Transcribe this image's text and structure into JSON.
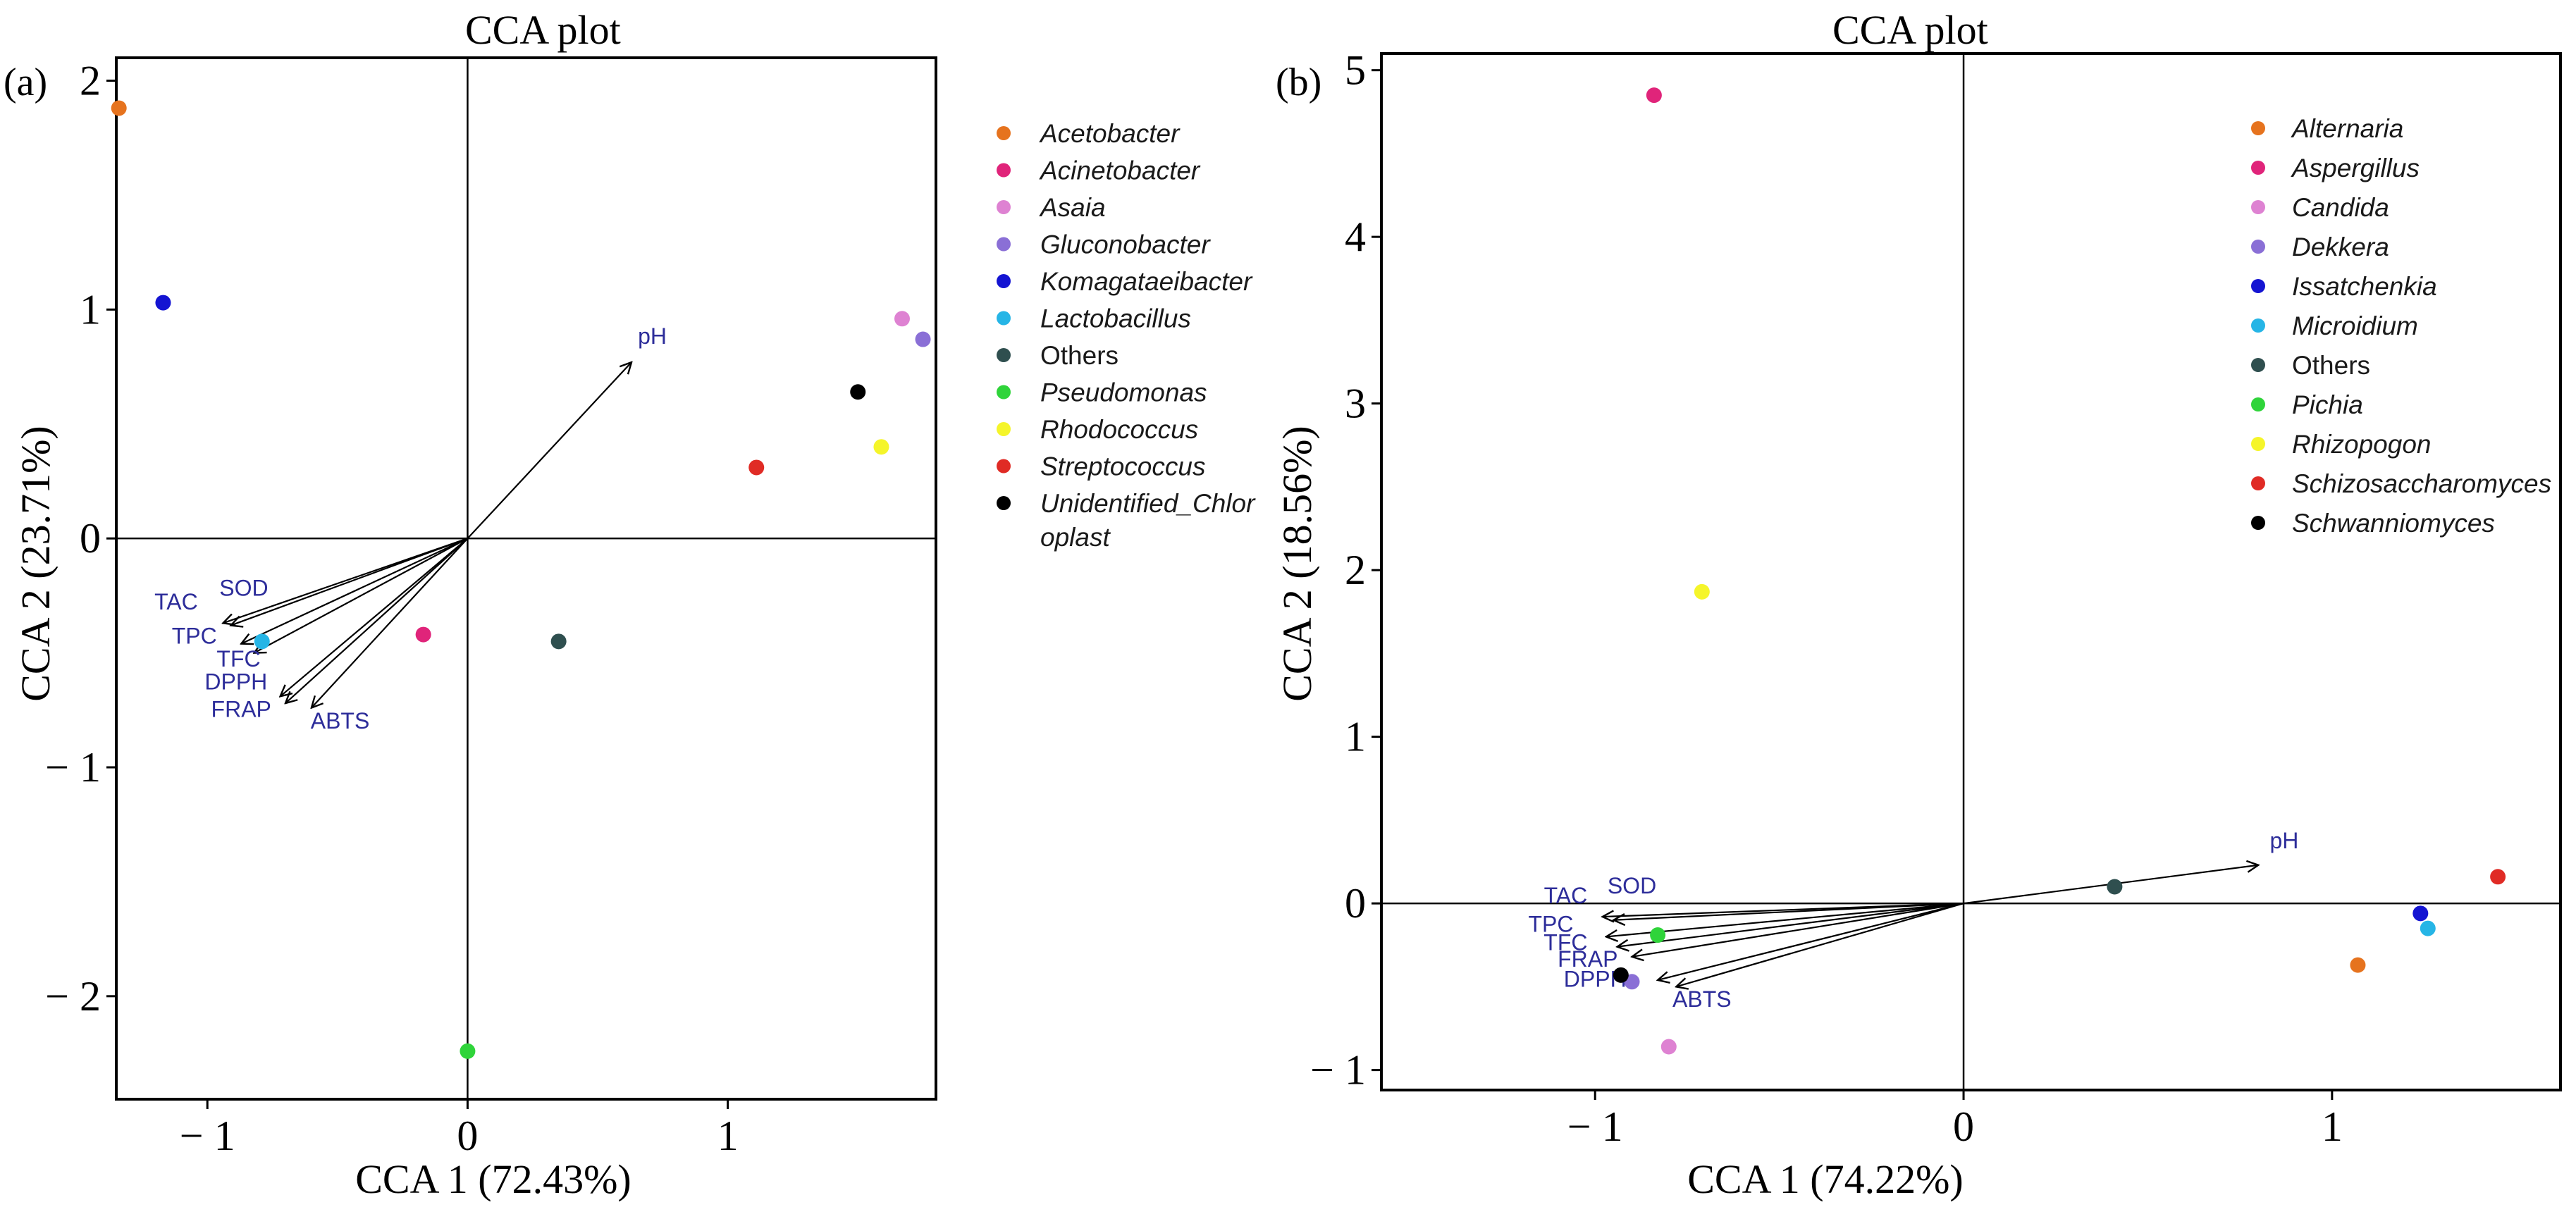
{
  "chart_data": [
    {
      "type": "scatter",
      "panel_label": "(a)",
      "title": "CCA  plot",
      "xlabel": "CCA  1 (72.43%)",
      "ylabel": "CCA  2 (23.71%)",
      "xlim": [
        -1.35,
        1.8
      ],
      "ylim": [
        -2.45,
        2.1
      ],
      "xticks": [
        {
          "v": -1,
          "label": "− 1"
        },
        {
          "v": 0,
          "label": "0"
        },
        {
          "v": 1,
          "label": "1"
        }
      ],
      "yticks": [
        {
          "v": -2,
          "label": "− 2"
        },
        {
          "v": -1,
          "label": "− 1"
        },
        {
          "v": 0,
          "label": "0"
        },
        {
          "v": 1,
          "label": "1"
        },
        {
          "v": 2,
          "label": "2"
        }
      ],
      "points": [
        {
          "name": "Acetobacter",
          "x": -1.34,
          "y": 1.88,
          "color": "#e6731e"
        },
        {
          "name": "Acinetobacter",
          "x": -0.17,
          "y": -0.42,
          "color": "#e0247a"
        },
        {
          "name": "Asaia",
          "x": 1.67,
          "y": 0.96,
          "color": "#de82d2"
        },
        {
          "name": "Gluconobacter",
          "x": 1.75,
          "y": 0.87,
          "color": "#8a6fd6"
        },
        {
          "name": "Komagataeibacter",
          "x": -1.17,
          "y": 1.03,
          "color": "#1414d2"
        },
        {
          "name": "Lactobacillus",
          "x": -0.79,
          "y": -0.45,
          "color": "#26b5e6"
        },
        {
          "name": "Others",
          "x": 0.35,
          "y": -0.45,
          "color": "#2f4f4f"
        },
        {
          "name": "Pseudomonas",
          "x": 0.0,
          "y": -2.24,
          "color": "#2fd43a"
        },
        {
          "name": "Rhodococcus",
          "x": 1.59,
          "y": 0.4,
          "color": "#f5f52a"
        },
        {
          "name": "Streptococcus",
          "x": 1.11,
          "y": 0.31,
          "color": "#e02b25"
        },
        {
          "name": "Unidentified_Chloroplast",
          "x": 1.5,
          "y": 0.64,
          "color": "#000000"
        }
      ],
      "vectors": [
        {
          "name": "pH",
          "x": 0.63,
          "y": 0.77,
          "lx": 0.71,
          "ly": 0.85
        },
        {
          "name": "TAC",
          "x": -0.94,
          "y": -0.37,
          "lx": -1.12,
          "ly": -0.31
        },
        {
          "name": "SOD",
          "x": -0.91,
          "y": -0.38,
          "lx": -0.86,
          "ly": -0.25
        },
        {
          "name": "TPC",
          "x": -0.87,
          "y": -0.46,
          "lx": -1.05,
          "ly": -0.46
        },
        {
          "name": "TFC",
          "x": -0.82,
          "y": -0.5,
          "lx": -0.88,
          "ly": -0.56
        },
        {
          "name": "DPPH",
          "x": -0.72,
          "y": -0.69,
          "lx": -0.89,
          "ly": -0.66
        },
        {
          "name": "FRAP",
          "x": -0.7,
          "y": -0.72,
          "lx": -0.87,
          "ly": -0.78
        },
        {
          "name": "ABTS",
          "x": -0.6,
          "y": -0.74,
          "lx": -0.49,
          "ly": -0.83
        }
      ],
      "legend": [
        {
          "label": "Acetobacter",
          "color": "#e6731e",
          "italic": true
        },
        {
          "label": "Acinetobacter",
          "color": "#e0247a",
          "italic": true
        },
        {
          "label": "Asaia",
          "color": "#de82d2",
          "italic": true
        },
        {
          "label": "Gluconobacter",
          "color": "#8a6fd6",
          "italic": true
        },
        {
          "label": "Komagataeibacter",
          "color": "#1414d2",
          "italic": true
        },
        {
          "label": "Lactobacillus",
          "color": "#26b5e6",
          "italic": true
        },
        {
          "label": "Others",
          "color": "#2f4f4f",
          "italic": false
        },
        {
          "label": "Pseudomonas",
          "color": "#2fd43a",
          "italic": true
        },
        {
          "label": "Rhodococcus",
          "color": "#f5f52a",
          "italic": true
        },
        {
          "label": "Streptococcus",
          "color": "#e02b25",
          "italic": true
        },
        {
          "label": "Unidentified_Chlor",
          "label2": "oplast",
          "color": "#000000",
          "italic": true
        }
      ]
    },
    {
      "type": "scatter",
      "panel_label": "(b)",
      "title": "CCA  plot",
      "xlabel": "CCA  1 (74.22%)",
      "ylabel": "CCA  2 (18.56%)",
      "xlim": [
        -1.58,
        1.62
      ],
      "ylim": [
        -1.12,
        5.1
      ],
      "xticks": [
        {
          "v": -1,
          "label": "− 1"
        },
        {
          "v": 0,
          "label": "0"
        },
        {
          "v": 1,
          "label": "1"
        }
      ],
      "yticks": [
        {
          "v": -1,
          "label": "− 1"
        },
        {
          "v": 0,
          "label": "0"
        },
        {
          "v": 1,
          "label": "1"
        },
        {
          "v": 2,
          "label": "2"
        },
        {
          "v": 3,
          "label": "3"
        },
        {
          "v": 4,
          "label": "4"
        },
        {
          "v": 5,
          "label": "5"
        }
      ],
      "points": [
        {
          "name": "Alternaria",
          "x": 1.07,
          "y": -0.37,
          "color": "#e6731e"
        },
        {
          "name": "Aspergillus",
          "x": -0.84,
          "y": 4.85,
          "color": "#e0247a"
        },
        {
          "name": "Candida",
          "x": -0.8,
          "y": -0.86,
          "color": "#de82d2"
        },
        {
          "name": "Dekkera",
          "x": -0.9,
          "y": -0.47,
          "color": "#8a6fd6"
        },
        {
          "name": "Issatchenkia",
          "x": 1.24,
          "y": -0.06,
          "color": "#1414d2"
        },
        {
          "name": "Microidium",
          "x": 1.26,
          "y": -0.15,
          "color": "#26b5e6"
        },
        {
          "name": "Others",
          "x": 0.41,
          "y": 0.1,
          "color": "#2f4f4f"
        },
        {
          "name": "Pichia",
          "x": -0.83,
          "y": -0.19,
          "color": "#2fd43a"
        },
        {
          "name": "Rhizopogon",
          "x": -0.71,
          "y": 1.87,
          "color": "#f5f52a"
        },
        {
          "name": "Schizosaccharomyces",
          "x": 1.45,
          "y": 0.16,
          "color": "#e02b25"
        },
        {
          "name": "Schwanniomyces",
          "x": -0.93,
          "y": -0.43,
          "color": "#000000"
        }
      ],
      "vectors": [
        {
          "name": "pH",
          "x": 0.8,
          "y": 0.23,
          "lx": 0.87,
          "ly": 0.33
        },
        {
          "name": "TAC",
          "x": -0.98,
          "y": -0.08,
          "lx": -1.08,
          "ly": 0.0
        },
        {
          "name": "SOD",
          "x": -0.95,
          "y": -0.1,
          "lx": -0.9,
          "ly": 0.06
        },
        {
          "name": "TPC",
          "x": -0.97,
          "y": -0.2,
          "lx": -1.12,
          "ly": -0.17
        },
        {
          "name": "TFC",
          "x": -0.94,
          "y": -0.26,
          "lx": -1.08,
          "ly": -0.28
        },
        {
          "name": "FRAP",
          "x": -0.9,
          "y": -0.32,
          "lx": -1.02,
          "ly": -0.38
        },
        {
          "name": "DPPH",
          "x": -0.83,
          "y": -0.46,
          "lx": -1.0,
          "ly": -0.5
        },
        {
          "name": "ABTS",
          "x": -0.78,
          "y": -0.5,
          "lx": -0.71,
          "ly": -0.62
        }
      ],
      "legend": [
        {
          "label": "Alternaria",
          "color": "#e6731e",
          "italic": true
        },
        {
          "label": "Aspergillus",
          "color": "#e0247a",
          "italic": true
        },
        {
          "label": "Candida",
          "color": "#de82d2",
          "italic": true
        },
        {
          "label": "Dekkera",
          "color": "#8a6fd6",
          "italic": true
        },
        {
          "label": "Issatchenkia",
          "color": "#1414d2",
          "italic": true
        },
        {
          "label": "Microidium",
          "color": "#26b5e6",
          "italic": true
        },
        {
          "label": "Others",
          "color": "#2f4f4f",
          "italic": false
        },
        {
          "label": "Pichia",
          "color": "#2fd43a",
          "italic": true
        },
        {
          "label": "Rhizopogon",
          "color": "#f5f52a",
          "italic": true
        },
        {
          "label": "Schizosaccharomyces",
          "color": "#e02b25",
          "italic": true
        },
        {
          "label": "Schwanniomyces",
          "color": "#000000",
          "italic": true
        }
      ]
    }
  ]
}
